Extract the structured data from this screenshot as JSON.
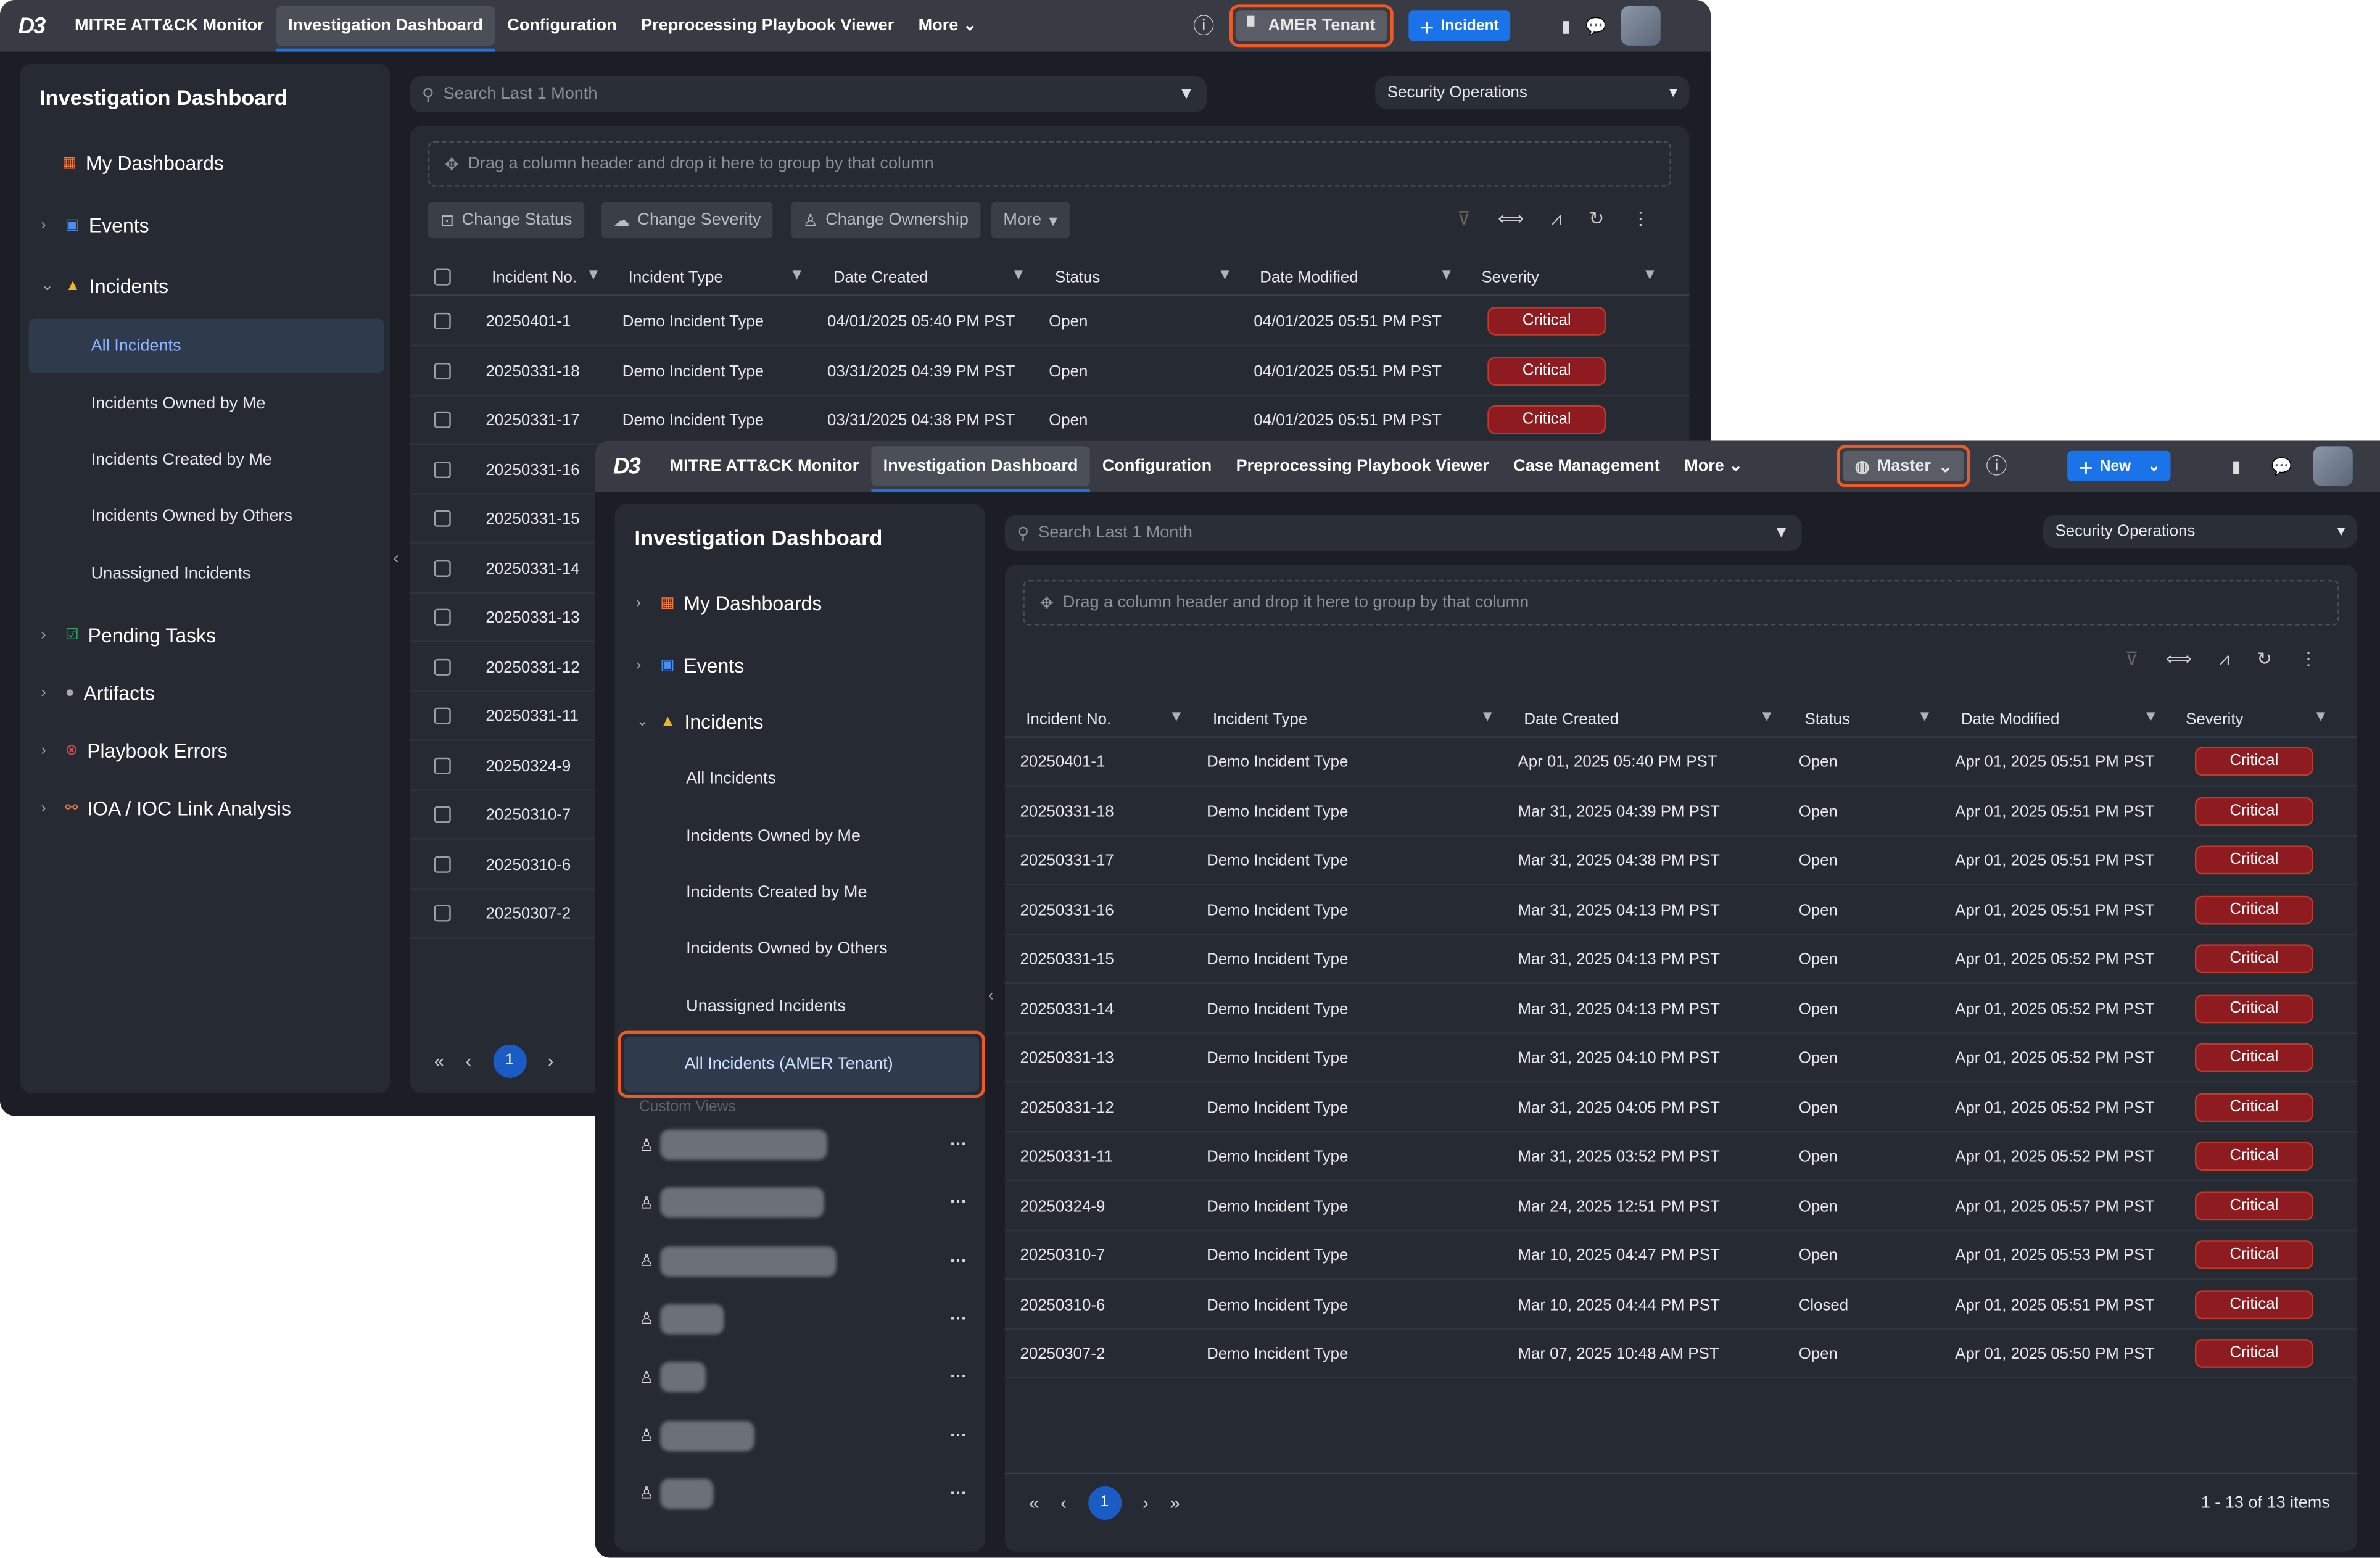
{
  "back": {
    "logo": "D3",
    "nav": [
      "MITRE ATT&CK Monitor",
      "Investigation Dashboard",
      "Configuration",
      "Preprocessing Playbook Viewer",
      "More"
    ],
    "tenant": "AMER Tenant",
    "new_incident": "Incident",
    "sidebar_title": "Investigation Dashboard",
    "sidebar": [
      "My Dashboards",
      "Events",
      "Incidents",
      "Pending Tasks",
      "Artifacts",
      "Playbook Errors",
      "IOA / IOC Link Analysis"
    ],
    "sub": [
      "All Incidents",
      "Incidents Owned by Me",
      "Incidents Created by Me",
      "Incidents Owned by Others",
      "Unassigned Incidents"
    ],
    "search_placeholder": "Search Last 1 Month",
    "dropdown": "Security Operations",
    "group_hint": "Drag a column header and drop it here to group by that column",
    "toolbar": [
      "Change Status",
      "Change Severity",
      "Change Ownership",
      "More"
    ],
    "columns": [
      "Incident No.",
      "Incident Type",
      "Date Created",
      "Status",
      "Date Modified",
      "Severity"
    ],
    "rows": [
      [
        "20250401-1",
        "Demo Incident Type",
        "04/01/2025 05:40 PM PST",
        "Open",
        "04/01/2025 05:51 PM PST",
        "Critical"
      ],
      [
        "20250331-18",
        "Demo Incident Type",
        "03/31/2025 04:39 PM PST",
        "Open",
        "04/01/2025 05:51 PM PST",
        "Critical"
      ],
      [
        "20250331-17",
        "Demo Incident Type",
        "03/31/2025 04:38 PM PST",
        "Open",
        "04/01/2025 05:51 PM PST",
        "Critical"
      ],
      [
        "20250331-16"
      ],
      [
        "20250331-15"
      ],
      [
        "20250331-14"
      ],
      [
        "20250331-13"
      ],
      [
        "20250331-12"
      ],
      [
        "20250331-11"
      ],
      [
        "20250324-9"
      ],
      [
        "20250310-7"
      ],
      [
        "20250310-6"
      ],
      [
        "20250307-2"
      ]
    ],
    "page": "1"
  },
  "front": {
    "logo": "D3",
    "nav": [
      "MITRE ATT&CK Monitor",
      "Investigation Dashboard",
      "Configuration",
      "Preprocessing Playbook Viewer",
      "Case Management",
      "More"
    ],
    "tenant": "Master",
    "new_label": "New",
    "sidebar_title": "Investigation Dashboard",
    "sidebar": [
      "My Dashboards",
      "Events",
      "Incidents"
    ],
    "sub": [
      "All Incidents",
      "Incidents Owned by Me",
      "Incidents Created by Me",
      "Incidents Owned by Others",
      "Unassigned Incidents",
      "All Incidents (AMER Tenant)"
    ],
    "custom_views_label": "Custom Views",
    "search_placeholder": "Search Last 1 Month",
    "dropdown": "Security Operations",
    "group_hint": "Drag a column header and drop it here to group by that column",
    "columns": [
      "Incident No.",
      "Incident Type",
      "Date Created",
      "Status",
      "Date Modified",
      "Severity"
    ],
    "rows": [
      [
        "20250401-1",
        "Demo Incident Type",
        "Apr 01, 2025 05:40 PM PST",
        "Open",
        "Apr 01, 2025 05:51 PM PST",
        "Critical"
      ],
      [
        "20250331-18",
        "Demo Incident Type",
        "Mar 31, 2025 04:39 PM PST",
        "Open",
        "Apr 01, 2025 05:51 PM PST",
        "Critical"
      ],
      [
        "20250331-17",
        "Demo Incident Type",
        "Mar 31, 2025 04:38 PM PST",
        "Open",
        "Apr 01, 2025 05:51 PM PST",
        "Critical"
      ],
      [
        "20250331-16",
        "Demo Incident Type",
        "Mar 31, 2025 04:13 PM PST",
        "Open",
        "Apr 01, 2025 05:51 PM PST",
        "Critical"
      ],
      [
        "20250331-15",
        "Demo Incident Type",
        "Mar 31, 2025 04:13 PM PST",
        "Open",
        "Apr 01, 2025 05:52 PM PST",
        "Critical"
      ],
      [
        "20250331-14",
        "Demo Incident Type",
        "Mar 31, 2025 04:13 PM PST",
        "Open",
        "Apr 01, 2025 05:52 PM PST",
        "Critical"
      ],
      [
        "20250331-13",
        "Demo Incident Type",
        "Mar 31, 2025 04:10 PM PST",
        "Open",
        "Apr 01, 2025 05:52 PM PST",
        "Critical"
      ],
      [
        "20250331-12",
        "Demo Incident Type",
        "Mar 31, 2025 04:05 PM PST",
        "Open",
        "Apr 01, 2025 05:52 PM PST",
        "Critical"
      ],
      [
        "20250331-11",
        "Demo Incident Type",
        "Mar 31, 2025 03:52 PM PST",
        "Open",
        "Apr 01, 2025 05:52 PM PST",
        "Critical"
      ],
      [
        "20250324-9",
        "Demo Incident Type",
        "Mar 24, 2025 12:51 PM PST",
        "Open",
        "Apr 01, 2025 05:57 PM PST",
        "Critical"
      ],
      [
        "20250310-7",
        "Demo Incident Type",
        "Mar 10, 2025 04:47 PM PST",
        "Open",
        "Apr 01, 2025 05:53 PM PST",
        "Critical"
      ],
      [
        "20250310-6",
        "Demo Incident Type",
        "Mar 10, 2025 04:44 PM PST",
        "Closed",
        "Apr 01, 2025 05:51 PM PST",
        "Critical"
      ],
      [
        "20250307-2",
        "Demo Incident Type",
        "Mar 07, 2025 10:48 AM PST",
        "Open",
        "Apr 01, 2025 05:50 PM PST",
        "Critical"
      ]
    ],
    "page": "1",
    "items_summary": "1 - 13 of 13 items"
  },
  "colors": {
    "highlight": "#f05a22",
    "accent": "#1a73e8",
    "critical": "#8e1b1f"
  }
}
